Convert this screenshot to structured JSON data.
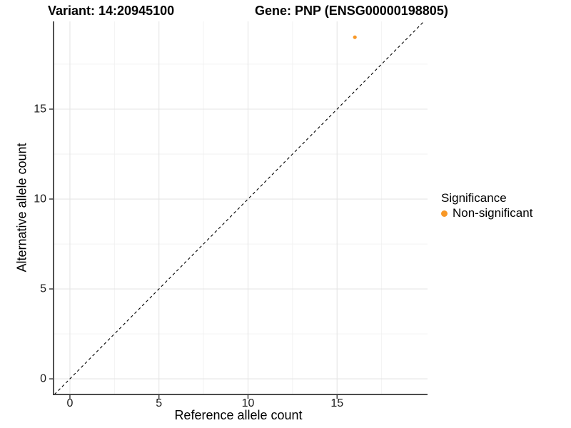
{
  "chart_data": {
    "type": "scatter",
    "title_left": "Variant: 14:20945100",
    "title_right": "Gene: PNP (ENSG00000198805)",
    "xlabel": "Reference allele count",
    "ylabel": "Alternative allele count",
    "xlim": [
      -0.92,
      20.08
    ],
    "ylim": [
      -0.87,
      19.88
    ],
    "x_ticks": [
      0,
      5,
      10,
      15
    ],
    "y_ticks": [
      0,
      5,
      10,
      15
    ],
    "x_minor_ticks": [
      2.5,
      7.5,
      12.5,
      17.5
    ],
    "y_minor_ticks": [
      2.5,
      7.5,
      12.5,
      17.5
    ],
    "grid": "major and minor gridlines, white background",
    "identity_line": {
      "equation": "y = x",
      "style": "dashed",
      "color": "#000000"
    },
    "series": [
      {
        "name": "Non-significant",
        "color": "#F89827",
        "points": [
          {
            "x": 16,
            "y": 19
          }
        ]
      }
    ],
    "legend": {
      "title": "Significance",
      "position": "right",
      "entries": [
        {
          "label": "Non-significant",
          "color": "#F89827",
          "marker": "dot"
        }
      ]
    }
  },
  "style": {
    "accent_orange": "#F89827",
    "axis_line_color": "#333333",
    "major_grid_color": "#e5e5e5",
    "minor_grid_color": "#f1f1f1"
  }
}
